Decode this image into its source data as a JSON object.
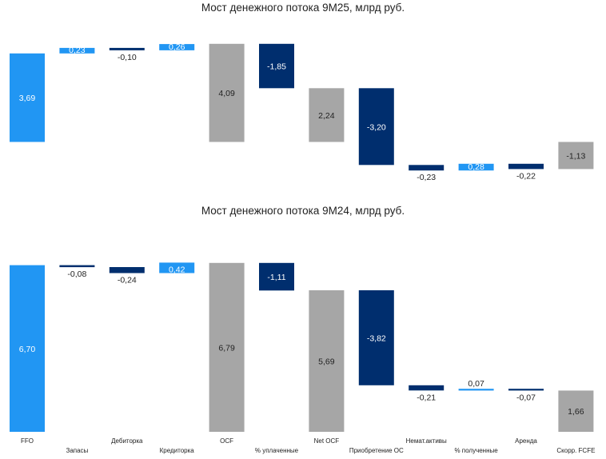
{
  "colors": {
    "total": "#a6a6a6",
    "increase": "#2196f3",
    "decrease": "#002e6e",
    "label_dark": "#222222",
    "label_light": "#ffffff"
  },
  "categories": [
    "FFO",
    "Запасы",
    "Дебиторка",
    "Кредиторка",
    "OCF",
    "% уплаченные",
    "Net OCF",
    "Приобретение ОС",
    "Немат.активы",
    "% полученные",
    "Аренда",
    "Скорр. FCFE"
  ],
  "chart_data": [
    {
      "type": "waterfall",
      "title": "Мост денежного потока 9М25, млрд руб.",
      "categories": [
        "FFO",
        "Запасы",
        "Дебиторка",
        "Кредиторка",
        "OCF",
        "% уплаченные",
        "Net OCF",
        "Приобретение ОС",
        "Немат.активы",
        "% полученные",
        "Аренда",
        "Скорр. FCFE"
      ],
      "values": [
        3.69,
        0.23,
        -0.1,
        0.26,
        4.09,
        -1.85,
        2.24,
        -3.2,
        -0.23,
        0.28,
        -0.22,
        -1.13
      ],
      "labels": [
        "3,69",
        "0,23",
        "-0,10",
        "0,26",
        "4,09",
        "-1,85",
        "2,24",
        "-3,20",
        "-0,23",
        "0,28",
        "-0,22",
        "-1,13"
      ],
      "kinds": [
        "increase",
        "increase",
        "decrease",
        "increase",
        "total",
        "decrease",
        "total",
        "decrease",
        "decrease",
        "increase",
        "decrease",
        "total"
      ],
      "ylim": [
        -1.25,
        4.25
      ]
    },
    {
      "type": "waterfall",
      "title": "Мост денежного потока 9М24, млрд руб.",
      "categories": [
        "FFO",
        "Запасы",
        "Дебиторка",
        "Кредиторка",
        "OCF",
        "% уплаченные",
        "Net OCF",
        "Приобретение ОС",
        "Немат.активы",
        "% полученные",
        "Аренда",
        "Скорр. FCFE"
      ],
      "values": [
        6.7,
        -0.08,
        -0.24,
        0.42,
        6.79,
        -1.11,
        5.69,
        -3.82,
        -0.21,
        0.07,
        -0.07,
        1.66
      ],
      "labels": [
        "6,70",
        "-0,08",
        "-0,24",
        "0,42",
        "6,79",
        "-1,11",
        "5,69",
        "-3,82",
        "-0,21",
        "0,07",
        "-0,07",
        "1,66"
      ],
      "kinds": [
        "increase",
        "decrease",
        "decrease",
        "increase",
        "total",
        "decrease",
        "total",
        "decrease",
        "decrease",
        "increase",
        "decrease",
        "total"
      ],
      "ylim": [
        0,
        7.2
      ]
    }
  ]
}
